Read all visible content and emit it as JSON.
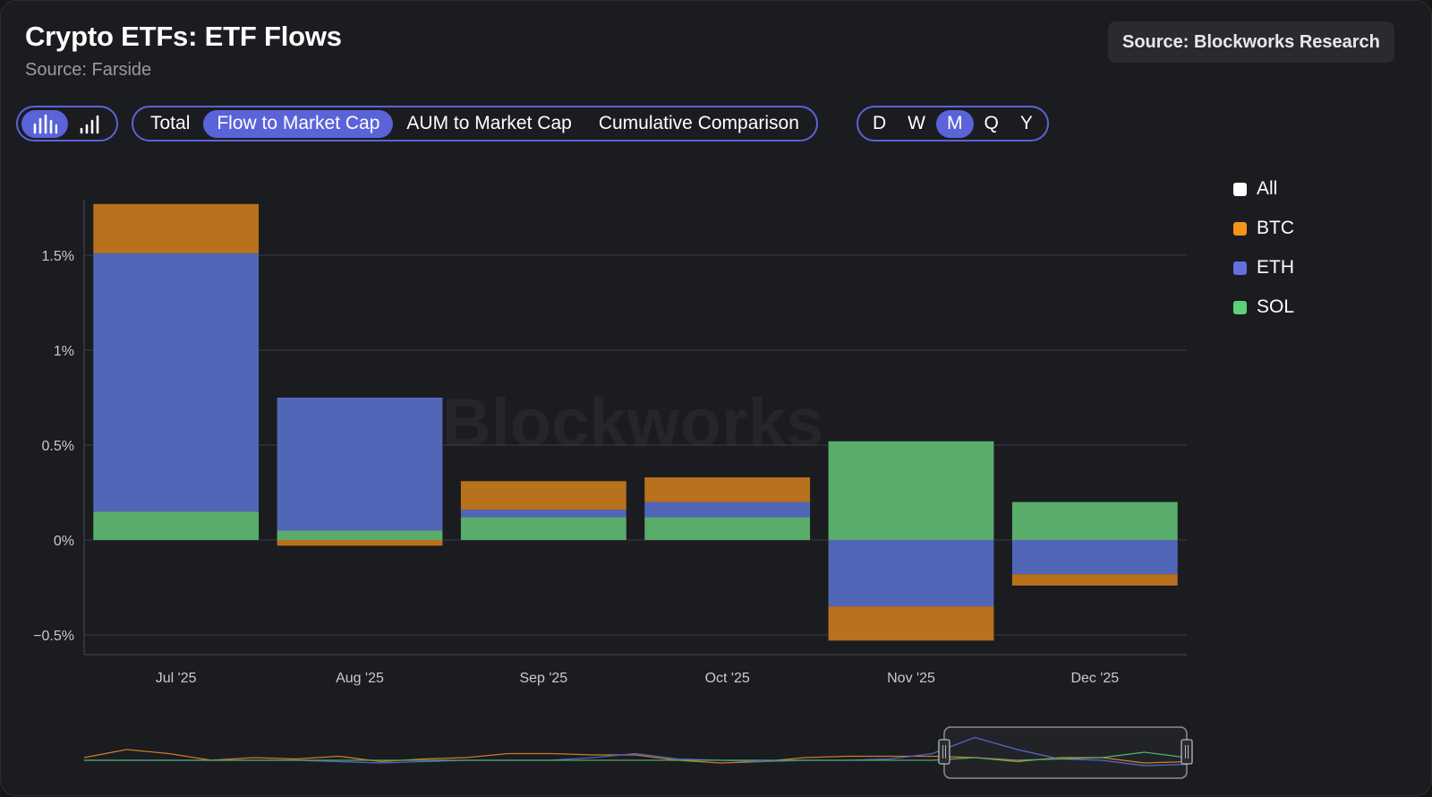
{
  "header": {
    "title": "Crypto ETFs: ETF Flows",
    "subtitle": "Source: Farside",
    "source_badge": "Source: Blockworks Research"
  },
  "toolbar": {
    "chart_type_icons": [
      "bar-chart-icon",
      "column-chart-icon"
    ],
    "metric_tabs": [
      "Total",
      "Flow to Market Cap",
      "AUM to Market Cap",
      "Cumulative Comparison"
    ],
    "active_metric": "Flow to Market Cap",
    "period_tabs": [
      "D",
      "W",
      "M",
      "Q",
      "Y"
    ],
    "active_period": "M"
  },
  "legend": [
    {
      "label": "All",
      "color": "#ffffff"
    },
    {
      "label": "BTC",
      "color": "#f7931a"
    },
    {
      "label": "ETH",
      "color": "#6371e0"
    },
    {
      "label": "SOL",
      "color": "#5fd07a"
    }
  ],
  "watermark": "Blockworks",
  "chart_data": {
    "type": "bar",
    "stacked": true,
    "categories": [
      "Jul '25",
      "Aug '25",
      "Sep '25",
      "Oct '25",
      "Nov '25",
      "Dec '25"
    ],
    "series": [
      {
        "name": "SOL",
        "color": "#5aac6b",
        "values": [
          0.15,
          0.05,
          0.12,
          0.12,
          0.52,
          0.2
        ]
      },
      {
        "name": "ETH",
        "color": "#5266b8",
        "values": [
          1.36,
          0.7,
          0.04,
          0.08,
          -0.35,
          -0.18
        ]
      },
      {
        "name": "BTC",
        "color": "#b8711d",
        "values": [
          0.26,
          -0.03,
          0.15,
          0.13,
          -0.18,
          -0.06
        ]
      }
    ],
    "yticks": [
      1.5,
      1,
      0.5,
      0,
      -0.5
    ],
    "ytick_labels": [
      "1.5%",
      "1%",
      "0.5%",
      "0%",
      "−0.5%"
    ],
    "ylim": [
      -0.6,
      1.8
    ],
    "grid": true,
    "legend_position": "right",
    "navigator": {
      "series": [
        {
          "name": "BTC",
          "color": "#c97c24",
          "values": [
            0.02,
            0.08,
            0.05,
            0.0,
            0.02,
            0.01,
            0.03,
            -0.01,
            0.01,
            0.02,
            0.05,
            0.05,
            0.04,
            0.04,
            0.0,
            -0.02,
            -0.01,
            0.02,
            0.03,
            0.03,
            0.03,
            0.02,
            -0.01,
            0.02,
            0.02,
            -0.02,
            -0.01
          ]
        },
        {
          "name": "ETH",
          "color": "#5362c9",
          "values": [
            0.0,
            0.0,
            0.0,
            0.0,
            0.0,
            0.0,
            -0.01,
            -0.02,
            -0.01,
            0.0,
            0.0,
            0.0,
            0.02,
            0.05,
            0.01,
            0.0,
            -0.01,
            0.0,
            0.0,
            0.01,
            0.05,
            0.17,
            0.08,
            0.01,
            0.0,
            -0.04,
            -0.03
          ]
        },
        {
          "name": "SOL",
          "color": "#4caa68",
          "values": [
            0.0,
            0.0,
            0.0,
            0.0,
            0.0,
            0.0,
            0.0,
            0.0,
            0.0,
            0.0,
            0.0,
            0.0,
            0.0,
            0.0,
            0.0,
            0.0,
            0.0,
            0.0,
            0.0,
            0.0,
            0.0,
            0.02,
            0.0,
            0.01,
            0.02,
            0.06,
            0.02
          ]
        }
      ],
      "selection": [
        0.78,
        1.0
      ]
    }
  }
}
